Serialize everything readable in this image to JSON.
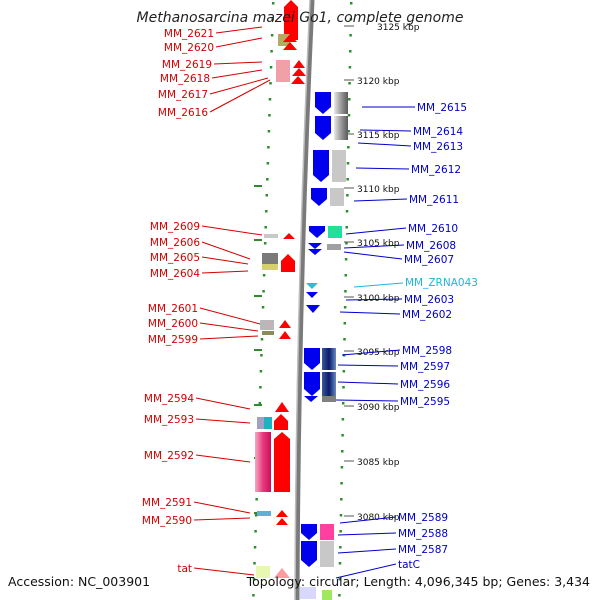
{
  "header": {
    "title": "Methanosarcina mazei Go1, complete genome"
  },
  "footer": {
    "accession": "Accession: NC_003901",
    "topology": "Topology: circular; Length: 4,096,345 bp; Genes: 3,434"
  },
  "colors": {
    "forward_label": "#d40000",
    "reverse_label": "#0000c8",
    "rna_label": "#22b4d8",
    "forward_gene": "#ff0000",
    "reverse_gene": "#0000ee",
    "backbone": "#888888",
    "ring_dots": "#2e8b2e"
  },
  "scale_labels": [
    "3125 kbp",
    "3120 kbp",
    "3115 kbp",
    "3110 kbp",
    "3105 kbp",
    "3100 kbp",
    "3095 kbp",
    "3090 kbp",
    "3085 kbp",
    "3080 kbp"
  ],
  "forward_genes": [
    "MM_2621",
    "MM_2620",
    "MM_2619",
    "MM_2618",
    "MM_2617",
    "MM_2616",
    "MM_2609",
    "MM_2606",
    "MM_2605",
    "MM_2604",
    "MM_2601",
    "MM_2600",
    "MM_2599",
    "MM_2594",
    "MM_2593",
    "MM_2592",
    "MM_2591",
    "MM_2590",
    "tat"
  ],
  "reverse_genes": [
    "MM_2615",
    "MM_2614",
    "MM_2613",
    "MM_2612",
    "MM_2611",
    "MM_2610",
    "MM_2608",
    "MM_2607",
    "MM_2603",
    "MM_2602",
    "MM_2598",
    "MM_2597",
    "MM_2596",
    "MM_2595",
    "MM_2589",
    "MM_2588",
    "MM_2587",
    "tatC"
  ],
  "rna_genes": [
    "MM_ZRNA043"
  ]
}
